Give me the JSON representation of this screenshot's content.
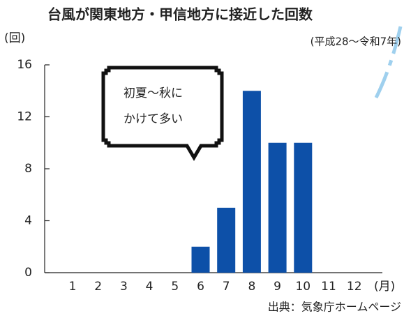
{
  "chart_data": {
    "type": "bar",
    "title": "台風が関東地方・甲信地方に接近した回数",
    "subtitle": "(平成28〜令和7年)",
    "y_label": "(回)",
    "x_label": "(月)",
    "source": "出典：気象庁ホームページ",
    "annotation": [
      "初夏〜秋に",
      "かけて多い"
    ],
    "categories": [
      "1",
      "2",
      "3",
      "4",
      "5",
      "6",
      "7",
      "8",
      "9",
      "10",
      "11",
      "12"
    ],
    "values": [
      0,
      0,
      0,
      0,
      0,
      2,
      5,
      14,
      10,
      10,
      0,
      0
    ],
    "color": "#0d50a8",
    "ylim": [
      0,
      16
    ],
    "yticks": [
      0,
      4,
      8,
      12,
      16
    ]
  }
}
